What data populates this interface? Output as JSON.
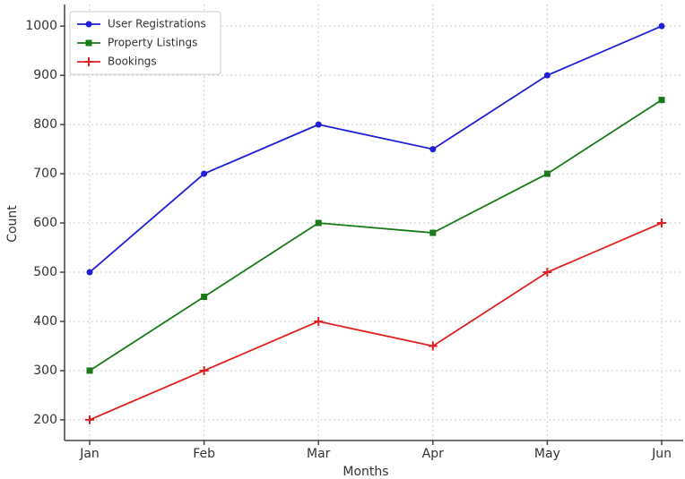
{
  "chart_data": {
    "type": "line",
    "x_label": "Months",
    "y_label": "Count",
    "categories": [
      "Jan",
      "Feb",
      "Mar",
      "Apr",
      "May",
      "Jun"
    ],
    "series": [
      {
        "name": "User Registrations",
        "color": "#1f1fd6",
        "marker": "circle",
        "values": [
          500,
          700,
          800,
          750,
          900,
          1000
        ]
      },
      {
        "name": "Property Listings",
        "color": "#1a7a1a",
        "marker": "square",
        "values": [
          300,
          450,
          600,
          580,
          700,
          850
        ]
      },
      {
        "name": "Bookings",
        "color": "#e02020",
        "marker": "plus",
        "values": [
          200,
          300,
          400,
          350,
          500,
          600
        ]
      }
    ],
    "ylim": [
      158,
      1044
    ],
    "yticks": [
      200,
      300,
      400,
      500,
      600,
      700,
      800,
      900,
      1000
    ],
    "grid": true,
    "legend": "upper left"
  }
}
